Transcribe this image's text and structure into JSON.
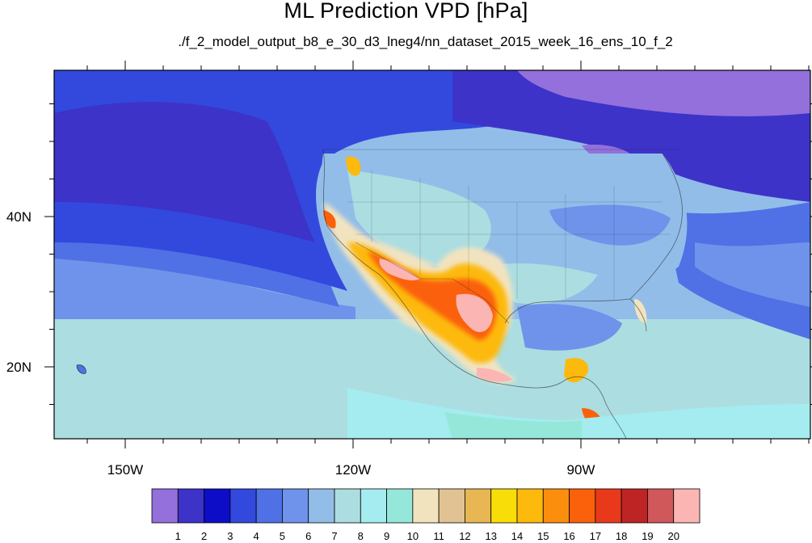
{
  "title": "ML Prediction VPD [hPa]",
  "subtitle": "./f_2_model_output_b8_e_30_d3_lneg4/nn_dataset_2015_week_16_ens_10_f_2",
  "axes": {
    "lon_ticks": [
      {
        "value": -150,
        "label": "150W"
      },
      {
        "value": -120,
        "label": "120W"
      },
      {
        "value": -90,
        "label": "90W"
      }
    ],
    "lat_ticks": [
      {
        "value": 40,
        "label": "40N"
      },
      {
        "value": 20,
        "label": "20N"
      }
    ]
  },
  "colorbar": {
    "colors": [
      "#9370db",
      "#3d33c9",
      "#0d0dc8",
      "#3349dd",
      "#4f71e5",
      "#6f93ea",
      "#92bde9",
      "#acdde1",
      "#a4ecef",
      "#95e8d9",
      "#f2e3bf",
      "#e1c393",
      "#e8b753",
      "#f9dd08",
      "#fdb90c",
      "#fc8e0e",
      "#fb610a",
      "#e83a1a",
      "#be2424",
      "#d0575a",
      "#fbb6b4"
    ],
    "labels": [
      "1",
      "2",
      "3",
      "4",
      "5",
      "6",
      "7",
      "8",
      "9",
      "10",
      "11",
      "12",
      "13",
      "14",
      "15",
      "16",
      "17",
      "18",
      "19",
      "20"
    ]
  }
}
